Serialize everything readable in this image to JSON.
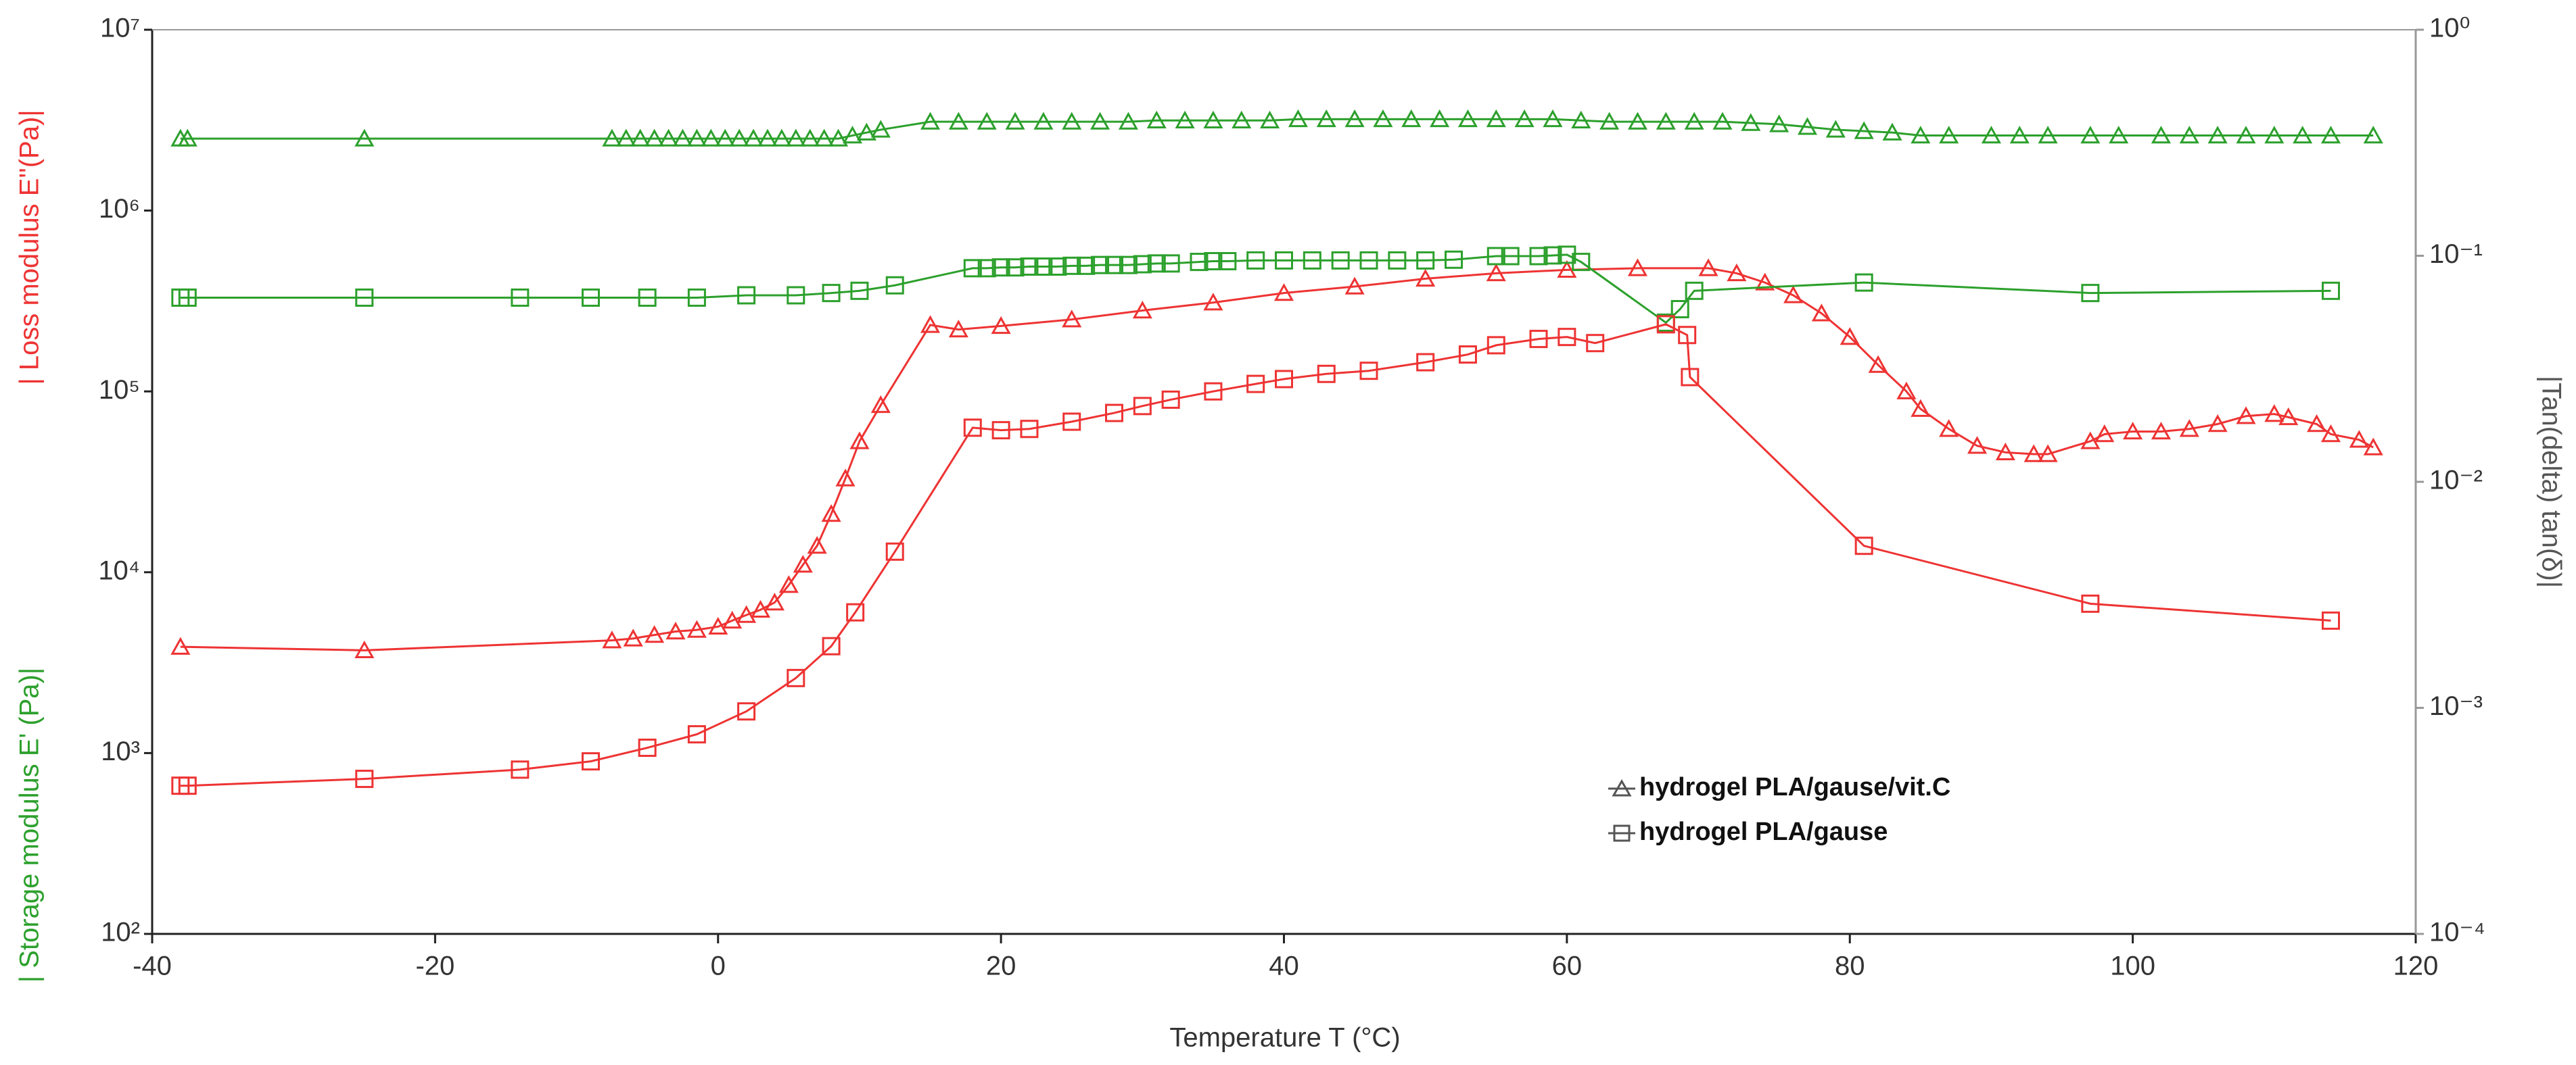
{
  "chart_data": {
    "type": "line",
    "xlabel": "Temperature T (°C)",
    "ylabel_storage": "| Storage modulus E' (Pa)|",
    "ylabel_loss": "| Loss modulus E''(Pa)|",
    "y2label": "|Tan(delta) tan(δ)|",
    "storage_color": "#2ca02c",
    "loss_color": "#ee3333",
    "xlim": [
      -40,
      120
    ],
    "xticks": [
      -40,
      -20,
      0,
      20,
      40,
      60,
      80,
      100,
      120
    ],
    "ylim": [
      100,
      10000000
    ],
    "yscale": "log",
    "yticks": [
      {
        "value": 100,
        "label": "10²"
      },
      {
        "value": 1000,
        "label": "10³"
      },
      {
        "value": 10000,
        "label": "10⁴"
      },
      {
        "value": 100000,
        "label": "10⁵"
      },
      {
        "value": 1000000,
        "label": "10⁶"
      },
      {
        "value": 10000000,
        "label": "10⁷"
      }
    ],
    "y2lim": [
      0.0001,
      1
    ],
    "y2ticks": [
      {
        "value": 0.0001,
        "label": "10⁻⁴"
      },
      {
        "value": 0.001,
        "label": "10⁻³"
      },
      {
        "value": 0.01,
        "label": "10⁻²"
      },
      {
        "value": 0.1,
        "label": "10⁻¹"
      },
      {
        "value": 1,
        "label": "10⁰"
      }
    ],
    "series": [
      {
        "name": "hydrogel PLA/gause/vit.C",
        "marker": "triangle",
        "storage_x": [
          -38,
          -37.5,
          -25,
          -7.5,
          -6.5,
          -5.5,
          -4.5,
          -3.5,
          -2.5,
          -1.5,
          -0.5,
          0.5,
          1.5,
          2.5,
          3.5,
          4.5,
          5.5,
          6.5,
          7.5,
          8.5,
          9.5,
          10.5,
          11.5,
          15,
          17,
          19,
          21,
          23,
          25,
          27,
          29,
          31,
          33,
          35,
          37,
          39,
          41,
          43,
          45,
          47,
          49,
          51,
          53,
          55,
          57,
          59,
          61,
          63,
          65,
          67,
          69,
          71,
          73,
          75,
          77,
          79,
          81,
          83,
          85,
          87,
          90,
          92,
          94,
          97,
          99,
          102,
          104,
          106,
          108,
          110,
          112,
          114,
          117
        ],
        "storage_values": [
          2500000,
          2500000,
          2500000,
          2500000,
          2500000,
          2500000,
          2500000,
          2500000,
          2500000,
          2500000,
          2500000,
          2500000,
          2500000,
          2500000,
          2500000,
          2500000,
          2500000,
          2500000,
          2500000,
          2500000,
          2600000,
          2700000,
          2800000,
          3100000,
          3100000,
          3100000,
          3100000,
          3100000,
          3100000,
          3100000,
          3100000,
          3150000,
          3150000,
          3150000,
          3150000,
          3150000,
          3200000,
          3200000,
          3200000,
          3200000,
          3200000,
          3200000,
          3200000,
          3200000,
          3200000,
          3200000,
          3150000,
          3100000,
          3100000,
          3100000,
          3100000,
          3100000,
          3050000,
          3000000,
          2900000,
          2800000,
          2750000,
          2700000,
          2600000,
          2600000,
          2600000,
          2600000,
          2600000,
          2600000,
          2600000,
          2600000,
          2600000,
          2600000,
          2600000,
          2600000,
          2600000,
          2600000,
          2600000
        ],
        "loss_x": [
          -38,
          -25,
          -7.5,
          -6,
          -4.5,
          -3,
          -1.5,
          0,
          1,
          2,
          3,
          4,
          5,
          6,
          7,
          8,
          9,
          10,
          11.5,
          15,
          17,
          20,
          25,
          30,
          35,
          40,
          45,
          50,
          55,
          60,
          65,
          70,
          72,
          74,
          76,
          78,
          80,
          82,
          84,
          85,
          87,
          89,
          91,
          93,
          94,
          97,
          98,
          100,
          102,
          104,
          106,
          108,
          110,
          111,
          113,
          114,
          116,
          117
        ],
        "loss_values": [
          3870,
          3700,
          4200,
          4300,
          4500,
          4700,
          4800,
          5000,
          5400,
          5800,
          6200,
          6800,
          8500,
          11000,
          14000,
          21000,
          33000,
          53000,
          84000,
          233000,
          220000,
          230000,
          250000,
          280000,
          310000,
          350000,
          380000,
          420000,
          450000,
          470000,
          480000,
          480000,
          450000,
          400000,
          340000,
          270000,
          200000,
          140000,
          100000,
          80000,
          62000,
          50000,
          46000,
          45000,
          45000,
          53000,
          58000,
          60000,
          60000,
          62000,
          66000,
          73000,
          75000,
          72000,
          66000,
          58000,
          54000,
          49000
        ]
      },
      {
        "name": "hydrogel PLA/gause",
        "marker": "square",
        "storage_x": [
          -38,
          -37.5,
          -25,
          -14,
          -9,
          -5,
          -1.5,
          2,
          5.5,
          8,
          10,
          12.5,
          18,
          19,
          20,
          21,
          22,
          23,
          24,
          25,
          26,
          27,
          28,
          29,
          30,
          31,
          32,
          34,
          35,
          36,
          38,
          40,
          42,
          44,
          46,
          48,
          50,
          52,
          55,
          56,
          58,
          59,
          60,
          61,
          67,
          68,
          69,
          81,
          97,
          114
        ],
        "storage_values": [
          330000,
          330000,
          330000,
          330000,
          330000,
          330000,
          330000,
          340000,
          340000,
          350000,
          360000,
          386000,
          480000,
          480000,
          485000,
          485000,
          490000,
          490000,
          490000,
          495000,
          495000,
          500000,
          500000,
          500000,
          505000,
          510000,
          510000,
          520000,
          525000,
          525000,
          530000,
          530000,
          530000,
          530000,
          530000,
          530000,
          530000,
          535000,
          560000,
          560000,
          560000,
          565000,
          570000,
          520000,
          240000,
          285000,
          360000,
          400000,
          350000,
          360000
        ],
        "loss_x": [
          -38,
          -37.5,
          -25,
          -14,
          -9,
          -5,
          -1.5,
          2,
          5.5,
          8,
          9.7,
          12.5,
          18,
          20,
          22,
          25,
          28,
          30,
          32,
          35,
          38,
          40,
          43,
          46,
          50,
          53,
          55,
          58,
          60,
          62,
          67,
          68.5,
          68.7,
          81,
          97,
          114
        ],
        "loss_values": [
          660,
          660,
          720,
          810,
          900,
          1070,
          1270,
          1700,
          2600,
          3900,
          6000,
          13000,
          63000,
          61000,
          62000,
          68000,
          76000,
          83000,
          90000,
          100000,
          110000,
          117000,
          125000,
          130000,
          145000,
          160000,
          180000,
          195000,
          200000,
          185000,
          235000,
          205000,
          120000,
          14000,
          6700,
          5400
        ]
      }
    ]
  }
}
